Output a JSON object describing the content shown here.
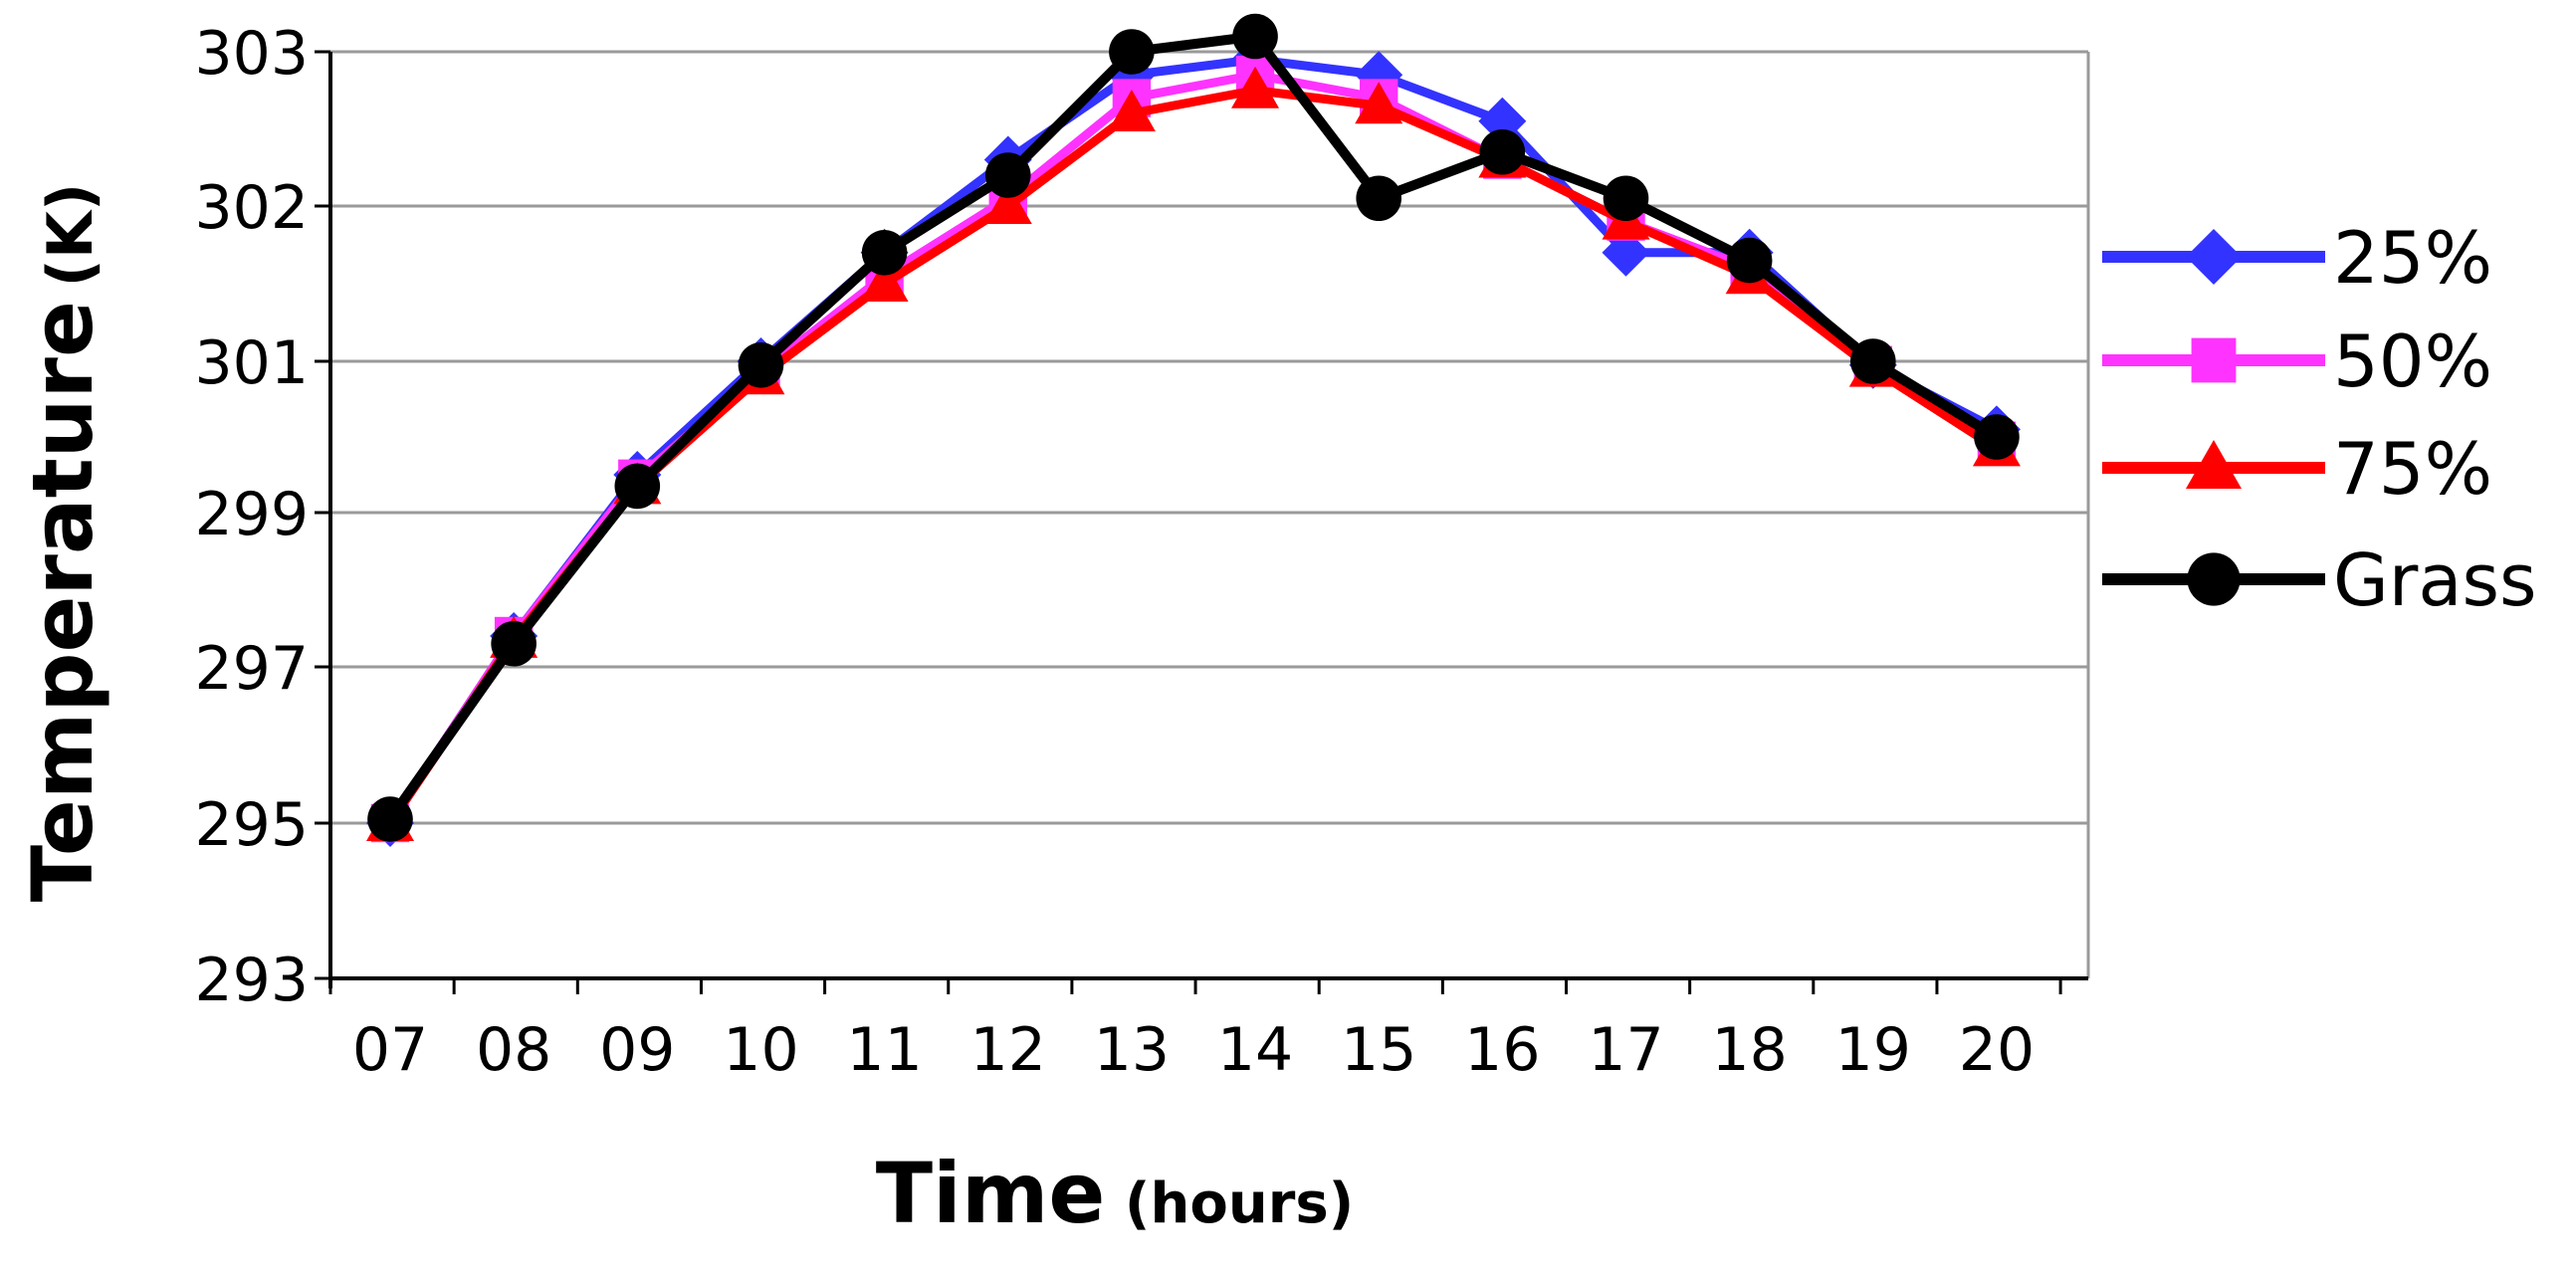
{
  "chart_data": {
    "type": "line",
    "title": "",
    "xlabel": "Time",
    "xlabel_unit": "(hours)",
    "ylabel": "Temperature",
    "ylabel_unit": "(K)",
    "categories": [
      "07",
      "08",
      "09",
      "10",
      "11",
      "12",
      "13",
      "14",
      "15",
      "16",
      "17",
      "18",
      "19",
      "20"
    ],
    "y_ticks": [
      "293",
      "295",
      "297",
      "299",
      "301",
      "302",
      "303"
    ],
    "y_tick_values": [
      293,
      295,
      297,
      299,
      301,
      302,
      303
    ],
    "grid": true,
    "legend_position": "right",
    "series": [
      {
        "name": "25%",
        "color": "#3333ff",
        "marker": "diamond",
        "values": [
          295.0,
          297.4,
          299.5,
          301.0,
          301.7,
          302.3,
          302.85,
          302.95,
          302.85,
          302.55,
          301.7,
          301.7,
          300.95,
          300.1
        ]
      },
      {
        "name": "50%",
        "color": "#ff33ff",
        "marker": "square",
        "values": [
          295.0,
          297.4,
          299.45,
          300.85,
          301.55,
          302.05,
          302.7,
          302.85,
          302.7,
          302.3,
          301.9,
          301.6,
          300.95,
          299.95
        ]
      },
      {
        "name": "75%",
        "color": "#ff0000",
        "marker": "triangle",
        "values": [
          295.0,
          297.35,
          299.35,
          300.8,
          301.5,
          302.0,
          302.6,
          302.75,
          302.65,
          302.3,
          301.9,
          301.55,
          300.9,
          299.85
        ]
      },
      {
        "name": "Grass",
        "color": "#000000",
        "marker": "circle",
        "values": [
          295.05,
          297.3,
          299.35,
          300.95,
          301.7,
          302.2,
          303.0,
          303.1,
          302.05,
          302.35,
          302.05,
          301.65,
          301.0,
          300.0
        ]
      }
    ]
  }
}
